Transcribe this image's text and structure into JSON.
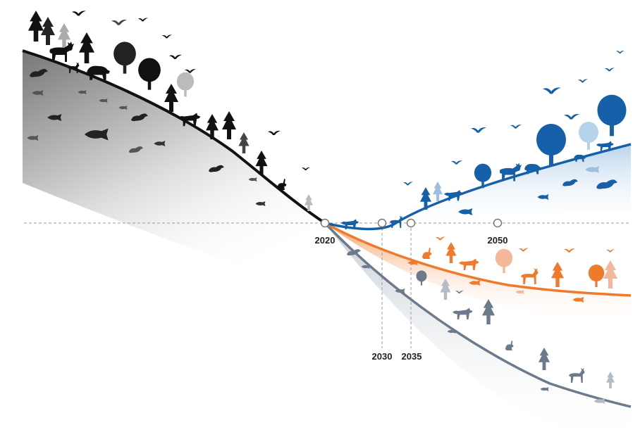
{
  "diagram": {
    "milestones": [
      {
        "label": "2020"
      },
      {
        "label": "2030"
      },
      {
        "label": "2035"
      },
      {
        "label": "2050"
      }
    ],
    "colors": {
      "past": "#111111",
      "recovery": "#1560a8",
      "partial": "#ef7a2b",
      "decline": "#6b7b8c",
      "baseline": "#9a9a9a"
    },
    "icons": [
      "tree-icon",
      "moose-icon",
      "bear-icon",
      "bird-icon",
      "fish-icon",
      "wolf-icon",
      "deer-icon",
      "fox-icon",
      "rabbit-icon",
      "seal-icon"
    ]
  }
}
